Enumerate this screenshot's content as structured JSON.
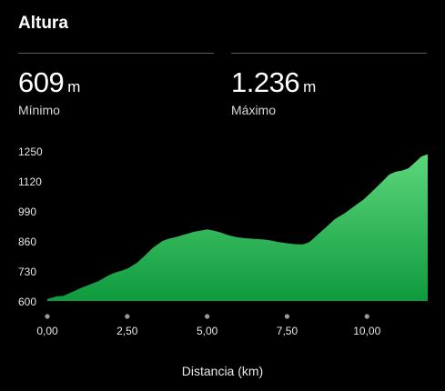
{
  "header": {
    "title": "Altura"
  },
  "stats": {
    "min": {
      "value": "609",
      "unit": "m",
      "label": "Mínimo"
    },
    "max": {
      "value": "1.236",
      "unit": "m",
      "label": "Máximo"
    }
  },
  "chart_data": {
    "type": "area",
    "xlabel": "Distancia (km)",
    "ylabel": "",
    "x_ticks": [
      0,
      2.5,
      5,
      7.5,
      10
    ],
    "x_tick_labels": [
      "0,00",
      "2,50",
      "5,00",
      "7,50",
      "10,00"
    ],
    "y_ticks": [
      600,
      730,
      860,
      990,
      1120,
      1250
    ],
    "y_tick_labels": [
      "600",
      "730",
      "860",
      "990",
      "1120",
      "1250"
    ],
    "ylim": [
      600,
      1250
    ],
    "xlim": [
      0,
      11.9
    ],
    "grid": false,
    "fill_colors": [
      "#5dd67b",
      "#0f9a3e"
    ],
    "series": [
      {
        "x": [
          0,
          0.3,
          0.5,
          0.8,
          1.0,
          1.3,
          1.6,
          1.9,
          2.1,
          2.3,
          2.5,
          2.8,
          3.0,
          3.3,
          3.6,
          3.8,
          4.0,
          4.2,
          4.4,
          4.6,
          4.8,
          5.0,
          5.2,
          5.4,
          5.6,
          5.8,
          6.0,
          6.2,
          6.4,
          6.6,
          6.8,
          7.0,
          7.2,
          7.4,
          7.6,
          7.8,
          8.0,
          8.2,
          8.4,
          8.6,
          8.8,
          9.0,
          9.3,
          9.6,
          9.9,
          10.2,
          10.5,
          10.7,
          10.9,
          11.1,
          11.3,
          11.5,
          11.7,
          11.9
        ],
        "values": [
          609,
          620,
          622,
          640,
          653,
          670,
          686,
          710,
          722,
          730,
          740,
          765,
          790,
          830,
          860,
          870,
          876,
          884,
          892,
          900,
          905,
          910,
          905,
          898,
          888,
          880,
          875,
          872,
          870,
          868,
          866,
          862,
          856,
          852,
          848,
          846,
          845,
          855,
          880,
          905,
          930,
          955,
          980,
          1010,
          1040,
          1080,
          1120,
          1148,
          1160,
          1165,
          1175,
          1200,
          1226,
          1236
        ]
      }
    ]
  }
}
